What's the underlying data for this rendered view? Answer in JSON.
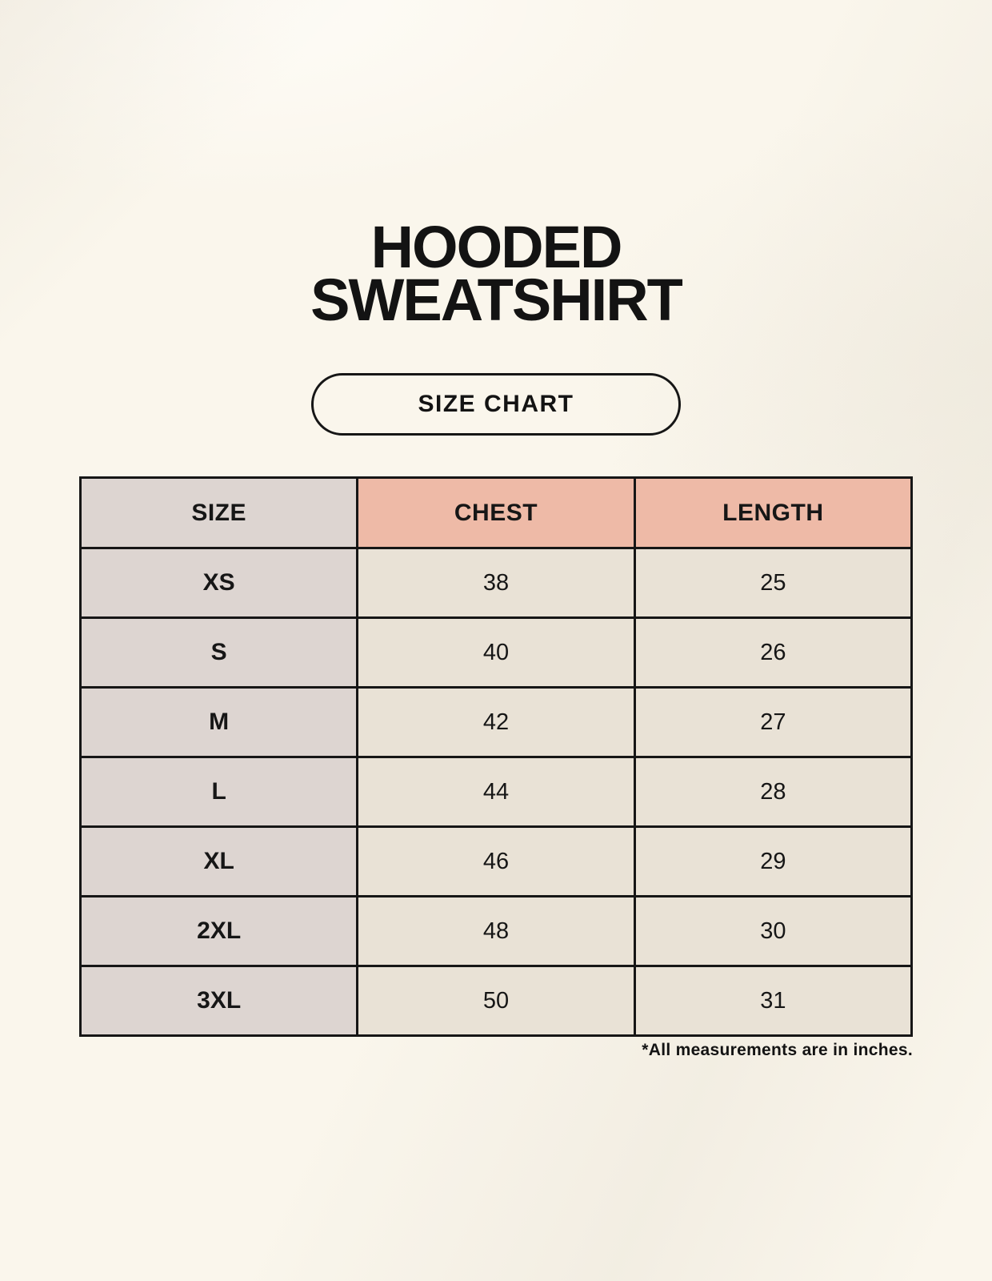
{
  "header": {
    "title_line1": "HOODED",
    "title_line2": "SWEATSHIRT",
    "badge_label": "SIZE CHART"
  },
  "chart_data": {
    "type": "table",
    "title": "HOODED SWEATSHIRT",
    "subtitle": "SIZE CHART",
    "columns": [
      "SIZE",
      "CHEST",
      "LENGTH"
    ],
    "rows": [
      {
        "size": "XS",
        "chest": 38,
        "length": 25
      },
      {
        "size": "S",
        "chest": 40,
        "length": 26
      },
      {
        "size": "M",
        "chest": 42,
        "length": 27
      },
      {
        "size": "L",
        "chest": 44,
        "length": 28
      },
      {
        "size": "XL",
        "chest": 46,
        "length": 29
      },
      {
        "size": "2XL",
        "chest": 48,
        "length": 30
      },
      {
        "size": "3XL",
        "chest": 50,
        "length": 31
      }
    ],
    "units": "inches"
  },
  "footnote": "*All measurements are in inches.",
  "colors": {
    "background": "#faf6ec",
    "header_accent": "#eebaa7",
    "label_column": "#ddd5d1",
    "value_cell": "#e9e2d6",
    "border": "#161616",
    "text": "#131313"
  }
}
